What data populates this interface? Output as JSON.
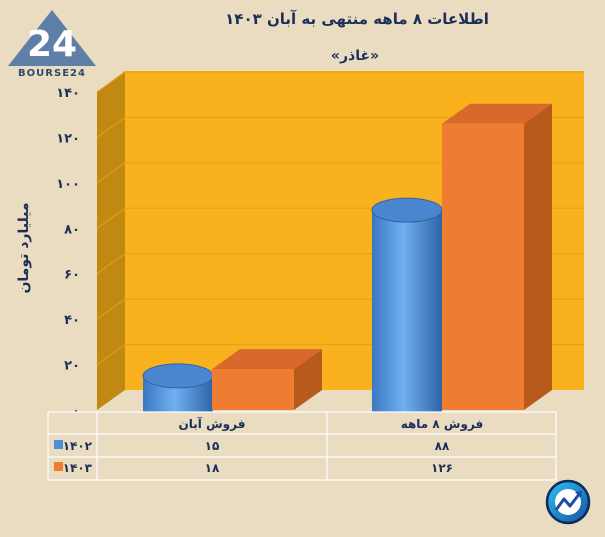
{
  "chart_data": {
    "type": "bar",
    "title": "اطلاعات ۸ ماهه منتهی به آبان ۱۴۰۳",
    "subtitle": "«غاذر»",
    "ylabel": "میلیارد تومان",
    "ylim": [
      0,
      140
    ],
    "yticks": [
      "۰",
      "۲۰",
      "۴۰",
      "۶۰",
      "۸۰",
      "۱۰۰",
      "۱۲۰",
      "۱۴۰"
    ],
    "ytick_values": [
      0,
      20,
      40,
      60,
      80,
      100,
      120,
      140
    ],
    "categories": [
      "فروش آبان",
      "فروش ۸ ماهه"
    ],
    "series": [
      {
        "name": "۱۴۰۲",
        "values": [
          15,
          88
        ],
        "display": [
          "۱۵",
          "۸۸"
        ],
        "color": "#4f8fd8",
        "shape": "cylinder"
      },
      {
        "name": "۱۴۰۳",
        "values": [
          18,
          126
        ],
        "display": [
          "۱۸",
          "۱۲۶"
        ],
        "color": "#ef7d31",
        "shape": "box"
      }
    ],
    "grid": true,
    "legend": "data-table"
  },
  "logo": {
    "text": "BOURSE24",
    "mark": "24"
  },
  "colors": {
    "plot_bg": "#f9b11d",
    "wall_side": "#c08a12",
    "page_bg": "#e9dcc0",
    "text": "#1c2f5a"
  },
  "icons": {
    "corner": "trend-chart-icon"
  }
}
